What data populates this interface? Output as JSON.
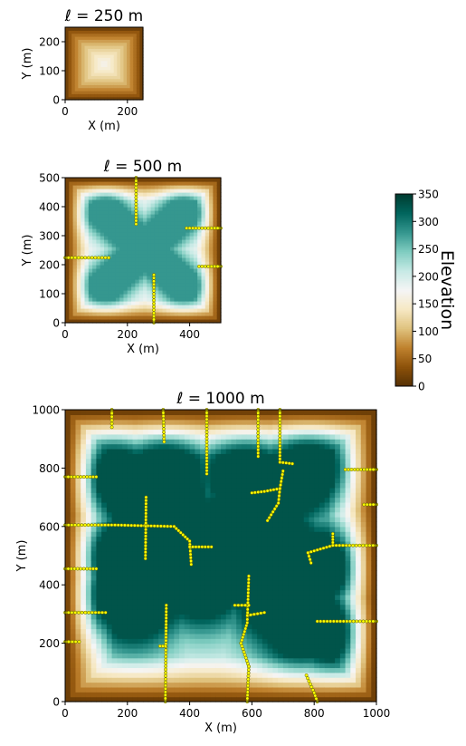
{
  "chart_data": [
    {
      "type": "heatmap",
      "title": "ℓ = 250 m",
      "xlabel": "X (m)",
      "ylabel": "Y (m)",
      "xlim": [
        0,
        250
      ],
      "ylim": [
        0,
        250
      ],
      "xticks": [
        0,
        200
      ],
      "yticks": [
        0,
        100,
        200
      ],
      "xtick_labels": [
        "0",
        "200"
      ],
      "ytick_labels": [
        "0",
        "100",
        "200"
      ],
      "terrain": "dome",
      "peak_elevation": 170,
      "rivers": []
    },
    {
      "type": "heatmap",
      "title": "ℓ = 500 m",
      "xlabel": "X (m)",
      "ylabel": "Y (m)",
      "xlim": [
        0,
        500
      ],
      "ylim": [
        0,
        500
      ],
      "xticks": [
        0,
        200,
        400
      ],
      "yticks": [
        0,
        100,
        200,
        300,
        400,
        500
      ],
      "xtick_labels": [
        "0",
        "200",
        "400"
      ],
      "ytick_labels": [
        "0",
        "100",
        "200",
        "300",
        "400",
        "500"
      ],
      "terrain": "ridges",
      "peak_elevation": 280,
      "ridges": [
        [
          [
            255,
            255
          ],
          [
            130,
            380
          ]
        ],
        [
          [
            255,
            255
          ],
          [
            380,
            380
          ]
        ],
        [
          [
            255,
            255
          ],
          [
            130,
            130
          ]
        ],
        [
          [
            255,
            255
          ],
          [
            380,
            130
          ]
        ]
      ],
      "rivers": [
        [
          [
            228,
            500
          ],
          [
            228,
            340
          ]
        ],
        [
          [
            0,
            224
          ],
          [
            140,
            224
          ]
        ],
        [
          [
            500,
            326
          ],
          [
            390,
            326
          ]
        ],
        [
          [
            500,
            194
          ],
          [
            430,
            194
          ]
        ],
        [
          [
            285,
            0
          ],
          [
            285,
            165
          ]
        ]
      ]
    },
    {
      "type": "heatmap",
      "title": "ℓ = 1000 m",
      "xlabel": "X (m)",
      "ylabel": "Y (m)",
      "xlim": [
        0,
        1000
      ],
      "ylim": [
        0,
        1000
      ],
      "xticks": [
        0,
        200,
        400,
        600,
        800,
        1000
      ],
      "yticks": [
        0,
        200,
        400,
        600,
        800,
        1000
      ],
      "xtick_labels": [
        "0",
        "200",
        "400",
        "600",
        "800",
        "1000"
      ],
      "ytick_labels": [
        "0",
        "200",
        "400",
        "600",
        "800",
        "1000"
      ],
      "terrain": "ridges",
      "peak_elevation": 330,
      "ridges": [
        [
          [
            155,
            770
          ],
          [
            860,
            240
          ]
        ],
        [
          [
            780,
            800
          ],
          [
            220,
            330
          ]
        ],
        [
          [
            140,
            490
          ],
          [
            360,
            600
          ]
        ],
        [
          [
            360,
            600
          ],
          [
            560,
            540
          ]
        ],
        [
          [
            140,
            370
          ],
          [
            300,
            450
          ]
        ],
        [
          [
            300,
            450
          ],
          [
            440,
            400
          ]
        ],
        [
          [
            630,
            600
          ],
          [
            740,
            470
          ]
        ],
        [
          [
            740,
            470
          ],
          [
            850,
            460
          ]
        ],
        [
          [
            680,
            340
          ],
          [
            760,
            260
          ]
        ],
        [
          [
            580,
            770
          ],
          [
            640,
            640
          ]
        ],
        [
          [
            320,
            780
          ],
          [
            330,
            700
          ]
        ]
      ],
      "rivers": [
        [
          [
            150,
            1000
          ],
          [
            150,
            940
          ]
        ],
        [
          [
            315,
            1000
          ],
          [
            318,
            890
          ]
        ],
        [
          [
            455,
            1000
          ],
          [
            455,
            780
          ]
        ],
        [
          [
            620,
            1000
          ],
          [
            620,
            840
          ]
        ],
        [
          [
            690,
            1000
          ],
          [
            690,
            820
          ]
        ],
        [
          [
            690,
            820
          ],
          [
            730,
            815
          ]
        ],
        [
          [
            0,
            770
          ],
          [
            100,
            770
          ]
        ],
        [
          [
            0,
            605
          ],
          [
            160,
            605
          ]
        ],
        [
          [
            160,
            605
          ],
          [
            350,
            600
          ]
        ],
        [
          [
            350,
            600
          ],
          [
            400,
            550
          ]
        ],
        [
          [
            400,
            550
          ],
          [
            405,
            470
          ]
        ],
        [
          [
            400,
            530
          ],
          [
            470,
            530
          ]
        ],
        [
          [
            260,
            700
          ],
          [
            258,
            490
          ]
        ],
        [
          [
            0,
            455
          ],
          [
            100,
            455
          ]
        ],
        [
          [
            0,
            305
          ],
          [
            130,
            305
          ]
        ],
        [
          [
            0,
            205
          ],
          [
            45,
            205
          ]
        ],
        [
          [
            325,
            330
          ],
          [
            322,
            0
          ]
        ],
        [
          [
            305,
            190
          ],
          [
            322,
            190
          ]
        ],
        [
          [
            590,
            430
          ],
          [
            585,
            270
          ]
        ],
        [
          [
            585,
            270
          ],
          [
            565,
            200
          ]
        ],
        [
          [
            565,
            200
          ],
          [
            590,
            120
          ]
        ],
        [
          [
            590,
            120
          ],
          [
            585,
            0
          ]
        ],
        [
          [
            545,
            330
          ],
          [
            590,
            330
          ]
        ],
        [
          [
            585,
            295
          ],
          [
            640,
            305
          ]
        ],
        [
          [
            1000,
            795
          ],
          [
            900,
            795
          ]
        ],
        [
          [
            1000,
            675
          ],
          [
            960,
            675
          ]
        ],
        [
          [
            1000,
            535
          ],
          [
            860,
            535
          ]
        ],
        [
          [
            860,
            535
          ],
          [
            780,
            510
          ]
        ],
        [
          [
            860,
            575
          ],
          [
            860,
            535
          ]
        ],
        [
          [
            780,
            510
          ],
          [
            790,
            475
          ]
        ],
        [
          [
            1000,
            275
          ],
          [
            810,
            275
          ]
        ],
        [
          [
            775,
            90
          ],
          [
            800,
            30
          ]
        ],
        [
          [
            800,
            30
          ],
          [
            810,
            0
          ]
        ],
        [
          [
            700,
            790
          ],
          [
            690,
            730
          ]
        ],
        [
          [
            690,
            730
          ],
          [
            640,
            720
          ]
        ],
        [
          [
            640,
            720
          ],
          [
            600,
            715
          ]
        ],
        [
          [
            690,
            730
          ],
          [
            685,
            680
          ]
        ],
        [
          [
            685,
            680
          ],
          [
            650,
            620
          ]
        ]
      ]
    }
  ],
  "colorbar": {
    "label": "Elevation",
    "min": 0,
    "max": 350,
    "ticks": [
      0,
      50,
      100,
      150,
      200,
      250,
      300,
      350
    ],
    "tick_labels": [
      "0",
      "50",
      "100",
      "150",
      "200",
      "250",
      "300",
      "350"
    ],
    "colormap": [
      "#543005",
      "#8c510a",
      "#bf812d",
      "#dfc27d",
      "#f6e8c3",
      "#f5f5f5",
      "#c7eae5",
      "#80cdc1",
      "#35978f",
      "#01665e",
      "#003c30"
    ]
  },
  "river_color": "#ffff00",
  "river_outline_color": "#5a5a00"
}
